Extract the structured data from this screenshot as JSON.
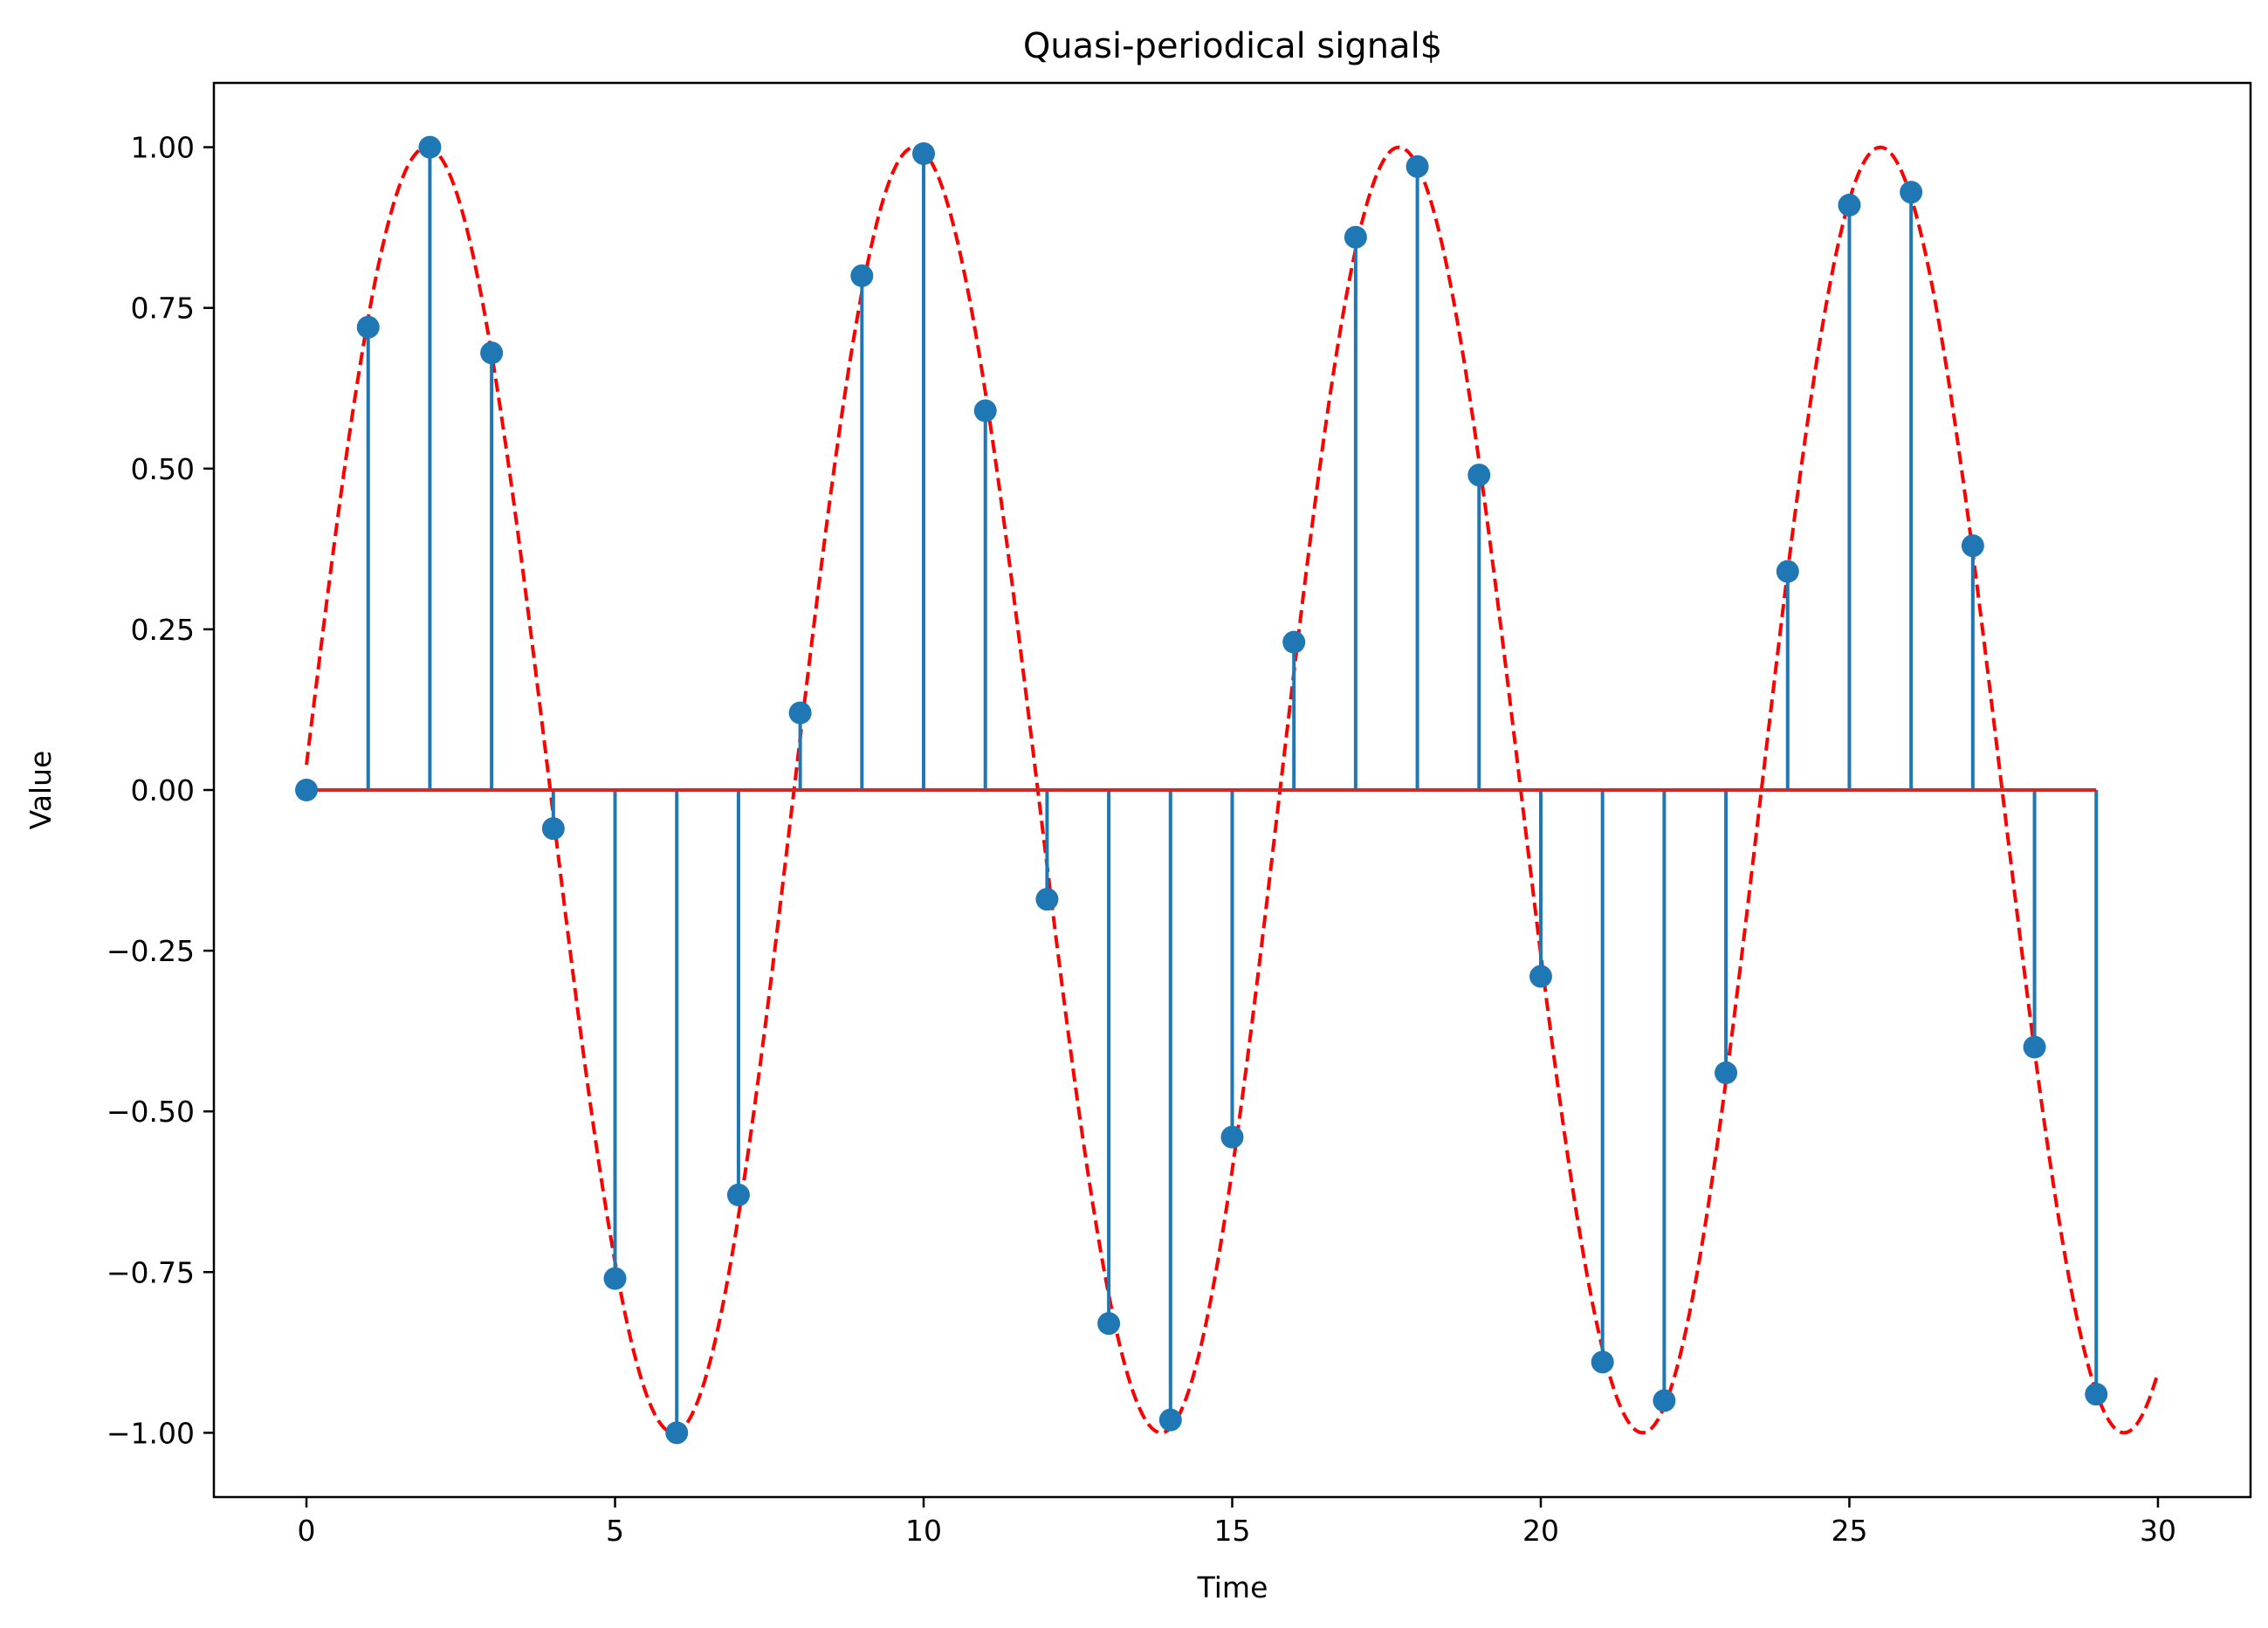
{
  "chart_data": {
    "type": "line",
    "title": "Quasi-periodical signal$",
    "xlabel": "Time",
    "ylabel": "Value",
    "xlim": [
      -1.5,
      31.5
    ],
    "ylim": [
      -1.1,
      1.1
    ],
    "x_ticks": [
      0,
      5,
      10,
      15,
      20,
      25,
      30
    ],
    "x_tick_labels": [
      "0",
      "5",
      "10",
      "15",
      "20",
      "25",
      "30"
    ],
    "y_ticks": [
      1.0,
      0.75,
      0.5,
      0.25,
      0.0,
      -0.25,
      -0.5,
      -0.75,
      -1.0
    ],
    "y_tick_labels": [
      "1.00",
      "0.75",
      "0.50",
      "0.25",
      "0.00",
      "−0.25",
      "−0.50",
      "−0.75",
      "−1.00"
    ],
    "grid": false,
    "legend": "none",
    "stem_series": {
      "color": "#1f77b4",
      "baseline_color": "#d62728",
      "baseline_value": 0,
      "x": [
        0,
        1,
        2,
        3,
        4,
        5,
        6,
        7,
        8,
        9,
        10,
        11,
        12,
        13,
        14,
        15,
        16,
        17,
        18,
        19,
        20,
        21,
        22,
        23,
        24,
        25,
        26,
        27,
        28,
        29
      ],
      "y": [
        0.0,
        0.72,
        1.0,
        0.68,
        -0.06,
        -0.76,
        -1.0,
        -0.63,
        0.12,
        0.8,
        0.99,
        0.59,
        -0.17,
        -0.83,
        -0.98,
        -0.54,
        0.23,
        0.86,
        0.97,
        0.49,
        -0.29,
        -0.89,
        -0.95,
        -0.44,
        0.34,
        0.91,
        0.93,
        0.38,
        -0.4,
        -0.94
      ]
    },
    "envelope_series": {
      "color": "#ff0000",
      "style": "dashed",
      "x_range": [
        0,
        30
      ],
      "peaks": [
        1.95,
        9.85,
        17.7,
        25.5
      ],
      "troughs": [
        5.95,
        13.85,
        21.65,
        29.45
      ]
    }
  }
}
